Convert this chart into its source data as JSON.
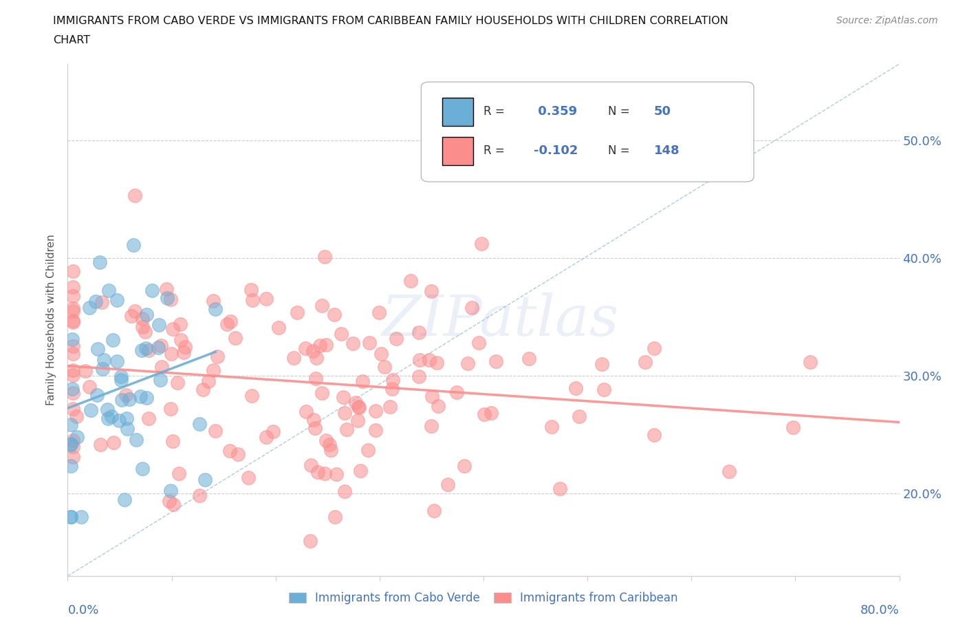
{
  "title_line1": "IMMIGRANTS FROM CABO VERDE VS IMMIGRANTS FROM CARIBBEAN FAMILY HOUSEHOLDS WITH CHILDREN CORRELATION",
  "title_line2": "CHART",
  "source": "Source: ZipAtlas.com",
  "ylabel": "Family Households with Children",
  "cabo_verde_color": "#6baed6",
  "caribbean_color": "#fc8d8d",
  "cabo_verde_R": 0.359,
  "cabo_verde_N": 50,
  "caribbean_R": -0.102,
  "caribbean_N": 148,
  "xlim": [
    0.0,
    0.8
  ],
  "ylim": [
    0.13,
    0.565
  ],
  "yticks": [
    0.2,
    0.3,
    0.4,
    0.5
  ],
  "ytick_labels": [
    "20.0%",
    "30.0%",
    "40.0%",
    "50.0%"
  ],
  "watermark_text": "ZIPatlas",
  "cv_seed": 12,
  "car_seed": 99
}
